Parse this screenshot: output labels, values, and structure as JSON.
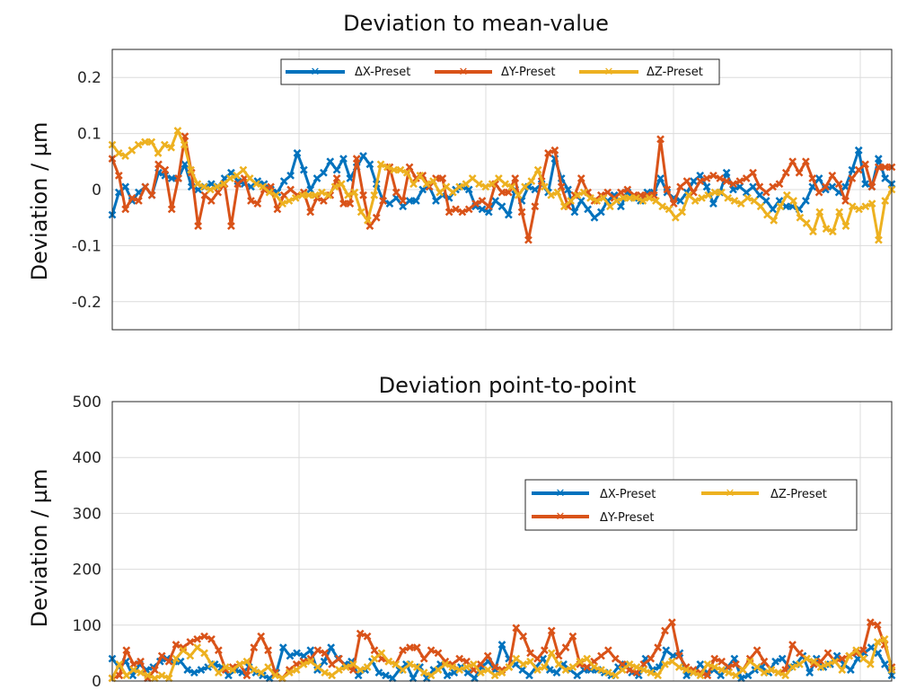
{
  "chart_data": [
    {
      "type": "line",
      "title": "Deviation to mean-value",
      "xlabel": "",
      "ylabel": "Deviation / µm",
      "ylim": [
        -0.25,
        0.25
      ],
      "yticks": [
        0.2,
        0.1,
        0,
        -0.1,
        -0.2
      ],
      "ytick_labels": [
        "0.2",
        "0.1",
        "0",
        "-0.1",
        "-0.2"
      ],
      "grid": true,
      "legend_placement": "top",
      "marker": "x",
      "series": [
        {
          "name": "ΔX-Preset",
          "color": "#0072BD",
          "values": [
            -0.045,
            -0.005,
            0.005,
            -0.02,
            -0.005,
            0.005,
            -0.01,
            0.03,
            0.025,
            0.02,
            0.02,
            0.045,
            0.005,
            0.0,
            0.005,
            0.01,
            0.005,
            0.02,
            0.03,
            0.015,
            0.01,
            0.005,
            0.015,
            0.01,
            0.0,
            -0.005,
            0.015,
            0.025,
            0.065,
            0.035,
            0.0,
            0.02,
            0.03,
            0.05,
            0.035,
            0.055,
            0.02,
            0.04,
            0.06,
            0.045,
            0.01,
            -0.02,
            -0.025,
            -0.015,
            -0.03,
            -0.02,
            -0.02,
            0.0,
            0.005,
            -0.02,
            -0.01,
            -0.015,
            0.0,
            0.005,
            0.0,
            -0.03,
            -0.035,
            -0.04,
            -0.02,
            -0.03,
            -0.045,
            0.0,
            -0.02,
            0.005,
            0.0,
            0.01,
            -0.005,
            0.055,
            0.02,
            0.0,
            -0.04,
            -0.02,
            -0.035,
            -0.05,
            -0.04,
            -0.02,
            -0.01,
            -0.03,
            -0.005,
            -0.015,
            -0.02,
            -0.005,
            -0.005,
            0.02,
            -0.005,
            -0.015,
            -0.02,
            -0.005,
            0.015,
            0.025,
            0.005,
            -0.025,
            -0.005,
            0.03,
            0.0,
            0.005,
            -0.005,
            0.005,
            -0.01,
            -0.02,
            -0.035,
            -0.02,
            -0.03,
            -0.03,
            -0.035,
            -0.02,
            0.005,
            0.02,
            0.0,
            0.005,
            -0.005,
            0.005,
            0.035,
            0.07,
            0.01,
            0.005,
            0.055,
            0.02,
            0.01
          ]
        },
        {
          "name": "ΔY-Preset",
          "color": "#D95319",
          "values": [
            0.055,
            0.025,
            -0.035,
            -0.015,
            -0.02,
            0.005,
            -0.01,
            0.045,
            0.035,
            -0.035,
            0.02,
            0.095,
            0.03,
            -0.065,
            -0.01,
            -0.02,
            -0.005,
            0.01,
            -0.065,
            0.01,
            0.02,
            -0.02,
            -0.025,
            0.0,
            0.005,
            -0.035,
            -0.01,
            0.0,
            -0.01,
            -0.005,
            -0.04,
            -0.015,
            -0.02,
            -0.01,
            0.02,
            -0.025,
            -0.025,
            0.055,
            -0.01,
            -0.065,
            -0.05,
            -0.02,
            0.04,
            -0.005,
            -0.02,
            0.04,
            0.02,
            0.025,
            0.005,
            0.02,
            0.02,
            -0.04,
            -0.035,
            -0.04,
            -0.035,
            -0.025,
            -0.02,
            -0.03,
            0.01,
            -0.005,
            -0.005,
            0.02,
            -0.04,
            -0.09,
            -0.03,
            0.015,
            0.065,
            0.07,
            0.005,
            -0.03,
            -0.01,
            0.02,
            -0.005,
            -0.02,
            -0.01,
            -0.005,
            -0.015,
            -0.005,
            0.0,
            -0.01,
            -0.01,
            -0.01,
            -0.01,
            0.09,
            0.0,
            -0.025,
            0.005,
            0.015,
            -0.005,
            0.015,
            0.02,
            0.025,
            0.02,
            0.015,
            0.01,
            0.015,
            0.02,
            0.03,
            0.005,
            -0.005,
            0.005,
            0.01,
            0.03,
            0.05,
            0.03,
            0.05,
            0.02,
            -0.005,
            0.005,
            0.025,
            0.01,
            -0.02,
            0.02,
            0.035,
            0.045,
            0.005,
            0.04,
            0.04,
            0.04
          ]
        },
        {
          "name": "ΔZ-Preset",
          "color": "#EDB120",
          "values": [
            0.08,
            0.065,
            0.06,
            0.07,
            0.08,
            0.085,
            0.085,
            0.065,
            0.08,
            0.075,
            0.105,
            0.08,
            0.035,
            0.01,
            0.005,
            0.0,
            0.005,
            0.01,
            0.02,
            0.025,
            0.035,
            0.02,
            0.01,
            0.005,
            -0.005,
            -0.01,
            -0.025,
            -0.02,
            -0.015,
            -0.01,
            -0.01,
            -0.01,
            -0.005,
            -0.01,
            0.005,
            0.01,
            -0.01,
            -0.005,
            -0.04,
            -0.055,
            -0.01,
            0.045,
            0.04,
            0.035,
            0.035,
            0.03,
            0.01,
            0.025,
            0.01,
            0.015,
            -0.005,
            0.005,
            -0.005,
            0.005,
            0.01,
            0.02,
            0.01,
            0.005,
            0.01,
            0.02,
            0.01,
            0.005,
            -0.01,
            0.005,
            0.015,
            0.035,
            0.005,
            -0.01,
            -0.005,
            -0.03,
            -0.02,
            -0.01,
            -0.005,
            -0.015,
            -0.02,
            -0.015,
            -0.03,
            -0.02,
            -0.015,
            -0.015,
            -0.015,
            -0.02,
            -0.015,
            -0.02,
            -0.03,
            -0.035,
            -0.05,
            -0.04,
            -0.01,
            -0.02,
            -0.015,
            -0.01,
            -0.005,
            -0.005,
            -0.015,
            -0.02,
            -0.025,
            -0.015,
            -0.02,
            -0.03,
            -0.045,
            -0.055,
            -0.03,
            -0.01,
            -0.02,
            -0.05,
            -0.06,
            -0.075,
            -0.04,
            -0.07,
            -0.075,
            -0.04,
            -0.065,
            -0.03,
            -0.035,
            -0.03,
            -0.025,
            -0.09,
            -0.02,
            0.0
          ]
        }
      ]
    },
    {
      "type": "line",
      "title": "Deviation point-to-point",
      "xlabel": "",
      "ylabel": "Deviation / µm",
      "ylim": [
        0,
        500
      ],
      "yticks": [
        500,
        400,
        300,
        200,
        100,
        0
      ],
      "ytick_labels": [
        "500",
        "400",
        "300",
        "200",
        "100",
        "0"
      ],
      "grid": true,
      "legend_placement": "right",
      "marker": "x",
      "series": [
        {
          "name": "ΔX-Preset",
          "color": "#0072BD",
          "values": [
            40,
            25,
            35,
            10,
            30,
            20,
            25,
            35,
            40,
            35,
            35,
            20,
            15,
            20,
            25,
            30,
            25,
            10,
            20,
            15,
            25,
            15,
            10,
            5,
            15,
            60,
            45,
            50,
            45,
            55,
            20,
            35,
            60,
            40,
            30,
            35,
            10,
            20,
            35,
            15,
            10,
            5,
            20,
            30,
            5,
            25,
            5,
            20,
            30,
            10,
            15,
            25,
            15,
            5,
            25,
            35,
            20,
            65,
            40,
            30,
            20,
            10,
            25,
            40,
            20,
            15,
            30,
            20,
            10,
            20,
            20,
            20,
            15,
            10,
            25,
            30,
            15,
            10,
            40,
            20,
            25,
            55,
            45,
            50,
            10,
            15,
            30,
            15,
            20,
            10,
            25,
            40,
            5,
            10,
            20,
            25,
            15,
            35,
            40,
            25,
            30,
            45,
            15,
            40,
            25,
            30,
            45,
            30,
            20,
            40,
            50,
            60,
            50,
            30,
            10
          ]
        },
        {
          "name": "ΔY-Preset",
          "color": "#D95319",
          "values": [
            5,
            10,
            55,
            30,
            35,
            5,
            20,
            45,
            35,
            65,
            60,
            70,
            75,
            80,
            75,
            55,
            20,
            25,
            30,
            10,
            60,
            80,
            55,
            15,
            5,
            20,
            30,
            35,
            40,
            55,
            50,
            30,
            40,
            25,
            20,
            85,
            80,
            55,
            40,
            35,
            30,
            55,
            60,
            60,
            40,
            55,
            50,
            35,
            30,
            40,
            35,
            20,
            30,
            45,
            25,
            20,
            25,
            95,
            80,
            50,
            40,
            55,
            90,
            45,
            60,
            80,
            30,
            25,
            35,
            45,
            55,
            40,
            30,
            20,
            15,
            30,
            40,
            60,
            90,
            105,
            45,
            25,
            20,
            15,
            10,
            40,
            35,
            25,
            30,
            20,
            40,
            55,
            35,
            20,
            15,
            20,
            65,
            50,
            40,
            30,
            35,
            50,
            35,
            40,
            45,
            50,
            55,
            105,
            100,
            65,
            25
          ]
        },
        {
          "name": "ΔZ-Preset",
          "color": "#EDB120",
          "values": [
            5,
            30,
            10,
            20,
            15,
            10,
            5,
            10,
            5,
            40,
            55,
            45,
            60,
            50,
            30,
            15,
            25,
            20,
            30,
            35,
            20,
            15,
            25,
            10,
            5,
            15,
            20,
            30,
            35,
            25,
            15,
            10,
            20,
            25,
            30,
            20,
            25,
            40,
            50,
            35,
            30,
            20,
            30,
            25,
            15,
            10,
            20,
            30,
            25,
            20,
            25,
            30,
            15,
            20,
            10,
            15,
            25,
            40,
            30,
            35,
            20,
            25,
            50,
            30,
            20,
            25,
            35,
            40,
            25,
            20,
            15,
            10,
            20,
            30,
            25,
            20,
            15,
            10,
            30,
            35,
            25,
            20,
            15,
            10,
            30,
            25,
            20,
            15,
            10,
            20,
            35,
            25,
            15,
            20,
            15,
            10,
            25,
            30,
            40,
            35,
            25,
            30,
            35,
            20,
            45,
            55,
            40,
            30,
            70,
            75,
            20
          ]
        }
      ]
    }
  ]
}
